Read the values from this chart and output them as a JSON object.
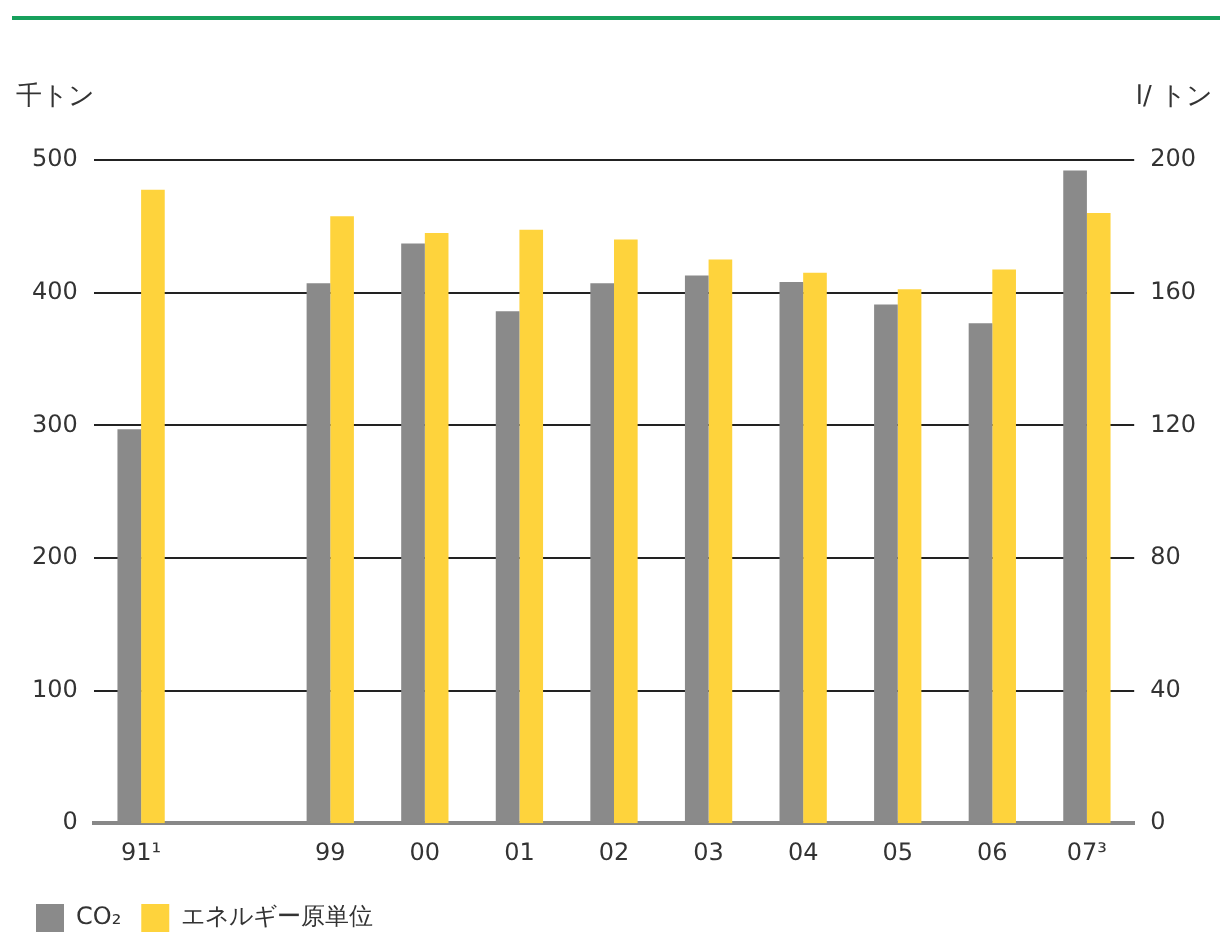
{
  "chart_data": {
    "type": "bar",
    "categories": [
      "91¹",
      null,
      "99",
      "00",
      "01",
      "02",
      "03",
      "04",
      "05",
      "06",
      "07³"
    ],
    "series": [
      {
        "name": "CO₂",
        "color": "#8a8a8a",
        "values": [
          297,
          null,
          407,
          437,
          386,
          407,
          413,
          408,
          391,
          377,
          492
        ]
      },
      {
        "name": "エネルギー原単位",
        "color": "#fed33c",
        "axis": "y2",
        "values": [
          191,
          null,
          183,
          178,
          179,
          176,
          170,
          166,
          161,
          167,
          184
        ]
      }
    ],
    "ylabel": "千トン",
    "y2label": "l/ トン",
    "ylim": [
      0,
      500
    ],
    "yticks": [
      0,
      100,
      200,
      300,
      400,
      500
    ],
    "y2lim": [
      0,
      200
    ],
    "y2ticks": [
      0,
      40,
      80,
      120,
      160,
      200
    ],
    "grid": "y",
    "legend": "bottom left"
  }
}
